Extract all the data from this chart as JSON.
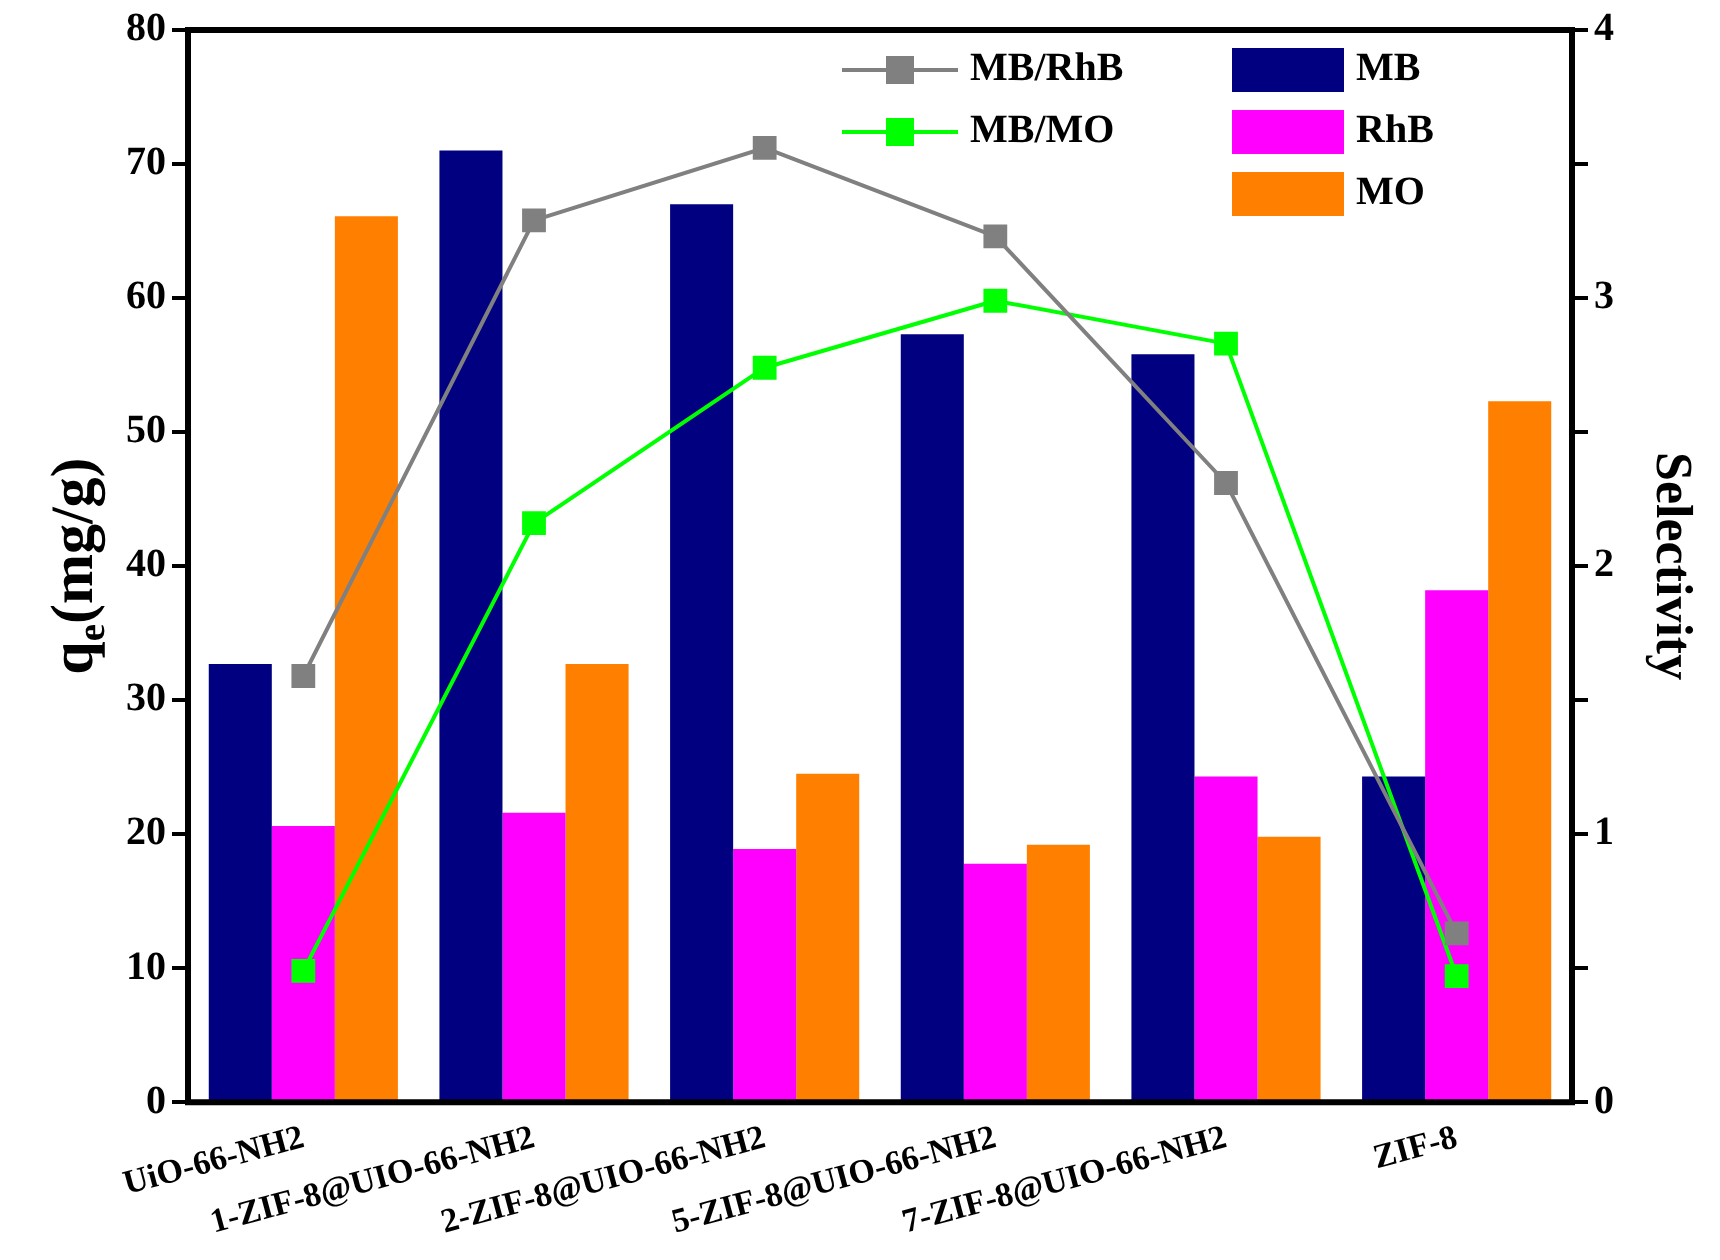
{
  "chart_data": {
    "type": "bar",
    "categories": [
      "UiO-66-NH2",
      "1-ZIF-8@UIO-66-NH2",
      "2-ZIF-8@UIO-66-NH2",
      "5-ZIF-8@UIO-66-NH2",
      "7-ZIF-8@UIO-66-NH2",
      "ZIF-8"
    ],
    "ylabel": "q$_{e}$(mg/g)",
    "y2label": "Selectivity",
    "ylim": [
      0,
      80
    ],
    "yticks": [
      0,
      10,
      20,
      30,
      40,
      50,
      60,
      70,
      80
    ],
    "y2lim": [
      0,
      4
    ],
    "y2ticks": [
      0,
      {
        "value": 0.5,
        "label": null
      },
      1,
      {
        "value": 1.5,
        "label": null
      },
      2,
      {
        "value": 2.5,
        "label": null
      },
      3,
      {
        "value": 3.5,
        "label": null
      },
      4
    ],
    "grid": false,
    "legend": "top right",
    "marker": "square",
    "line_style": "solid",
    "series": [
      {
        "name": "MB",
        "color": "#000080",
        "values": [
          32.7,
          71,
          67,
          57.3,
          55.8,
          24.3
        ]
      },
      {
        "name": "RhB",
        "color": "#ff00ff",
        "values": [
          20.6,
          21.6,
          18.9,
          17.8,
          24.3,
          38.2
        ]
      },
      {
        "name": "MO",
        "color": "#ff8000",
        "values": [
          66.1,
          32.7,
          24.5,
          19.2,
          19.8,
          52.3
        ]
      },
      {
        "name": "MB/RhB",
        "type": "line",
        "axis": "y2",
        "color": "#808080",
        "values": [
          1.59,
          3.29,
          3.56,
          3.23,
          2.31,
          0.63
        ]
      },
      {
        "name": "MB/MO",
        "type": "line",
        "axis": "y2",
        "color": "#00ff00",
        "values": [
          0.49,
          2.16,
          2.74,
          2.99,
          2.83,
          0.47
        ]
      }
    ]
  }
}
